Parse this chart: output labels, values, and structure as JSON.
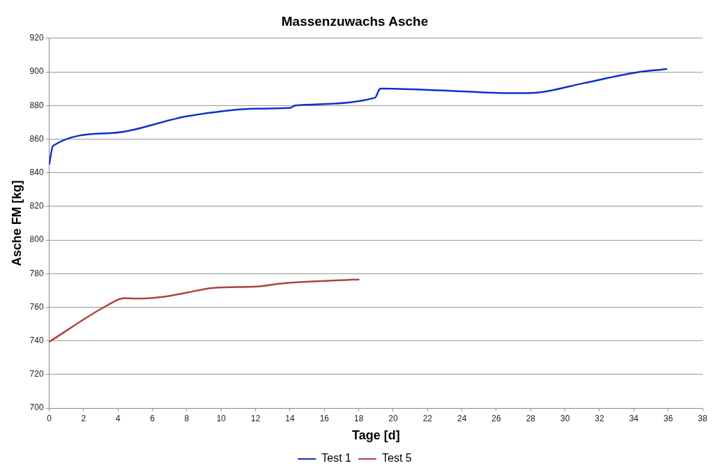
{
  "chart_data": {
    "type": "line",
    "title": "Massenzuwachs Asche",
    "xlabel": "Tage [d]",
    "ylabel": "Asche FM [kg]",
    "xlim": [
      0,
      38
    ],
    "xticks": [
      0,
      2,
      4,
      6,
      8,
      10,
      12,
      14,
      16,
      18,
      20,
      22,
      24,
      26,
      28,
      30,
      32,
      34,
      36,
      38
    ],
    "ylim": [
      700,
      920
    ],
    "yticks": [
      700,
      720,
      740,
      760,
      780,
      800,
      820,
      840,
      860,
      880,
      900,
      920
    ],
    "grid": "y",
    "legend": "bottom",
    "marker": "none",
    "line_style": "solid",
    "series": [
      {
        "name": "Test 1",
        "color": "#0a32c8",
        "x": [
          0,
          0.22,
          3.64,
          7.87,
          10.41,
          12.1,
          14.0,
          14.3,
          18.95,
          19.2,
          19.3,
          22.7,
          26.9,
          28.3,
          31.1,
          34.0,
          35.9
        ],
        "values": [
          845,
          856,
          863.6,
          873.3,
          877,
          878.1,
          878.5,
          880,
          884.6,
          889.6,
          890,
          889,
          887.3,
          887.6,
          893.3,
          899.4,
          901.7
        ]
      },
      {
        "name": "Test 5",
        "color": "#b04040",
        "x": [
          0,
          3.36,
          4.35,
          5.05,
          6.74,
          7.87,
          9.57,
          12.1,
          13.5,
          18.0
        ],
        "values": [
          739.4,
          761,
          765.4,
          765.1,
          766.3,
          768.4,
          771.5,
          772.3,
          774.1,
          776.5
        ]
      }
    ]
  }
}
